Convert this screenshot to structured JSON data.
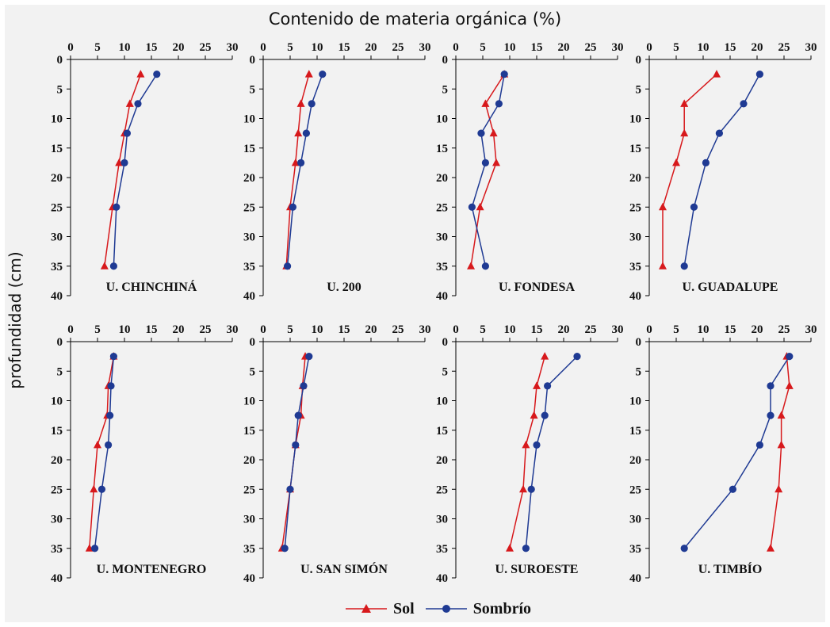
{
  "chart_data": {
    "type": "line",
    "title": "Contenido de materia orgánica (%)",
    "ylabel": "profundidad (cm)",
    "xlim": [
      0,
      30
    ],
    "ylim": [
      0,
      40
    ],
    "x_ticks": [
      0,
      5,
      10,
      15,
      20,
      25,
      30
    ],
    "y_ticks": [
      0,
      5,
      10,
      15,
      20,
      25,
      30,
      35,
      40
    ],
    "y_inverted": true,
    "grid": false,
    "legend_position": "bottom-center",
    "series_names": [
      "Sol",
      "Sombrío"
    ],
    "series_colors": {
      "Sol": "#d7191c",
      "Sombrío": "#1f3a93"
    },
    "panels": [
      {
        "label": "U. CHINCHINÁ",
        "depth": [
          2.5,
          7.5,
          12.5,
          17.5,
          25,
          35
        ],
        "sol": [
          13.0,
          11.0,
          10.0,
          9.0,
          7.8,
          6.3
        ],
        "sombrio": [
          16.0,
          12.5,
          10.5,
          10.0,
          8.5,
          8.0
        ]
      },
      {
        "label": "U. 200",
        "depth": [
          2.5,
          7.5,
          12.5,
          17.5,
          25,
          35
        ],
        "sol": [
          8.5,
          7.0,
          6.5,
          6.0,
          5.0,
          4.3
        ],
        "sombrio": [
          11.0,
          9.0,
          8.0,
          7.0,
          5.5,
          4.5
        ]
      },
      {
        "label": "U. FONDESA",
        "depth": [
          2.5,
          7.5,
          12.5,
          17.5,
          25,
          35
        ],
        "sol": [
          9.0,
          5.5,
          7.0,
          7.5,
          4.5,
          2.8
        ],
        "sombrio": [
          9.0,
          8.0,
          4.7,
          5.5,
          3.0,
          5.5
        ]
      },
      {
        "label": "U. GUADALUPE",
        "depth": [
          2.5,
          7.5,
          12.5,
          17.5,
          25,
          35
        ],
        "sol": [
          12.5,
          6.5,
          6.5,
          5.0,
          2.5,
          2.5
        ],
        "sombrio": [
          20.5,
          17.5,
          13.0,
          10.5,
          8.3,
          6.5
        ]
      },
      {
        "label": "U. MONTENEGRO",
        "depth": [
          2.5,
          7.5,
          12.5,
          17.5,
          25,
          35
        ],
        "sol": [
          8.0,
          7.0,
          6.8,
          5.0,
          4.3,
          3.5
        ],
        "sombrio": [
          8.0,
          7.5,
          7.3,
          7.0,
          5.8,
          4.5
        ]
      },
      {
        "label": "U. SAN SIMÓN",
        "depth": [
          2.5,
          7.5,
          12.5,
          17.5,
          25,
          35
        ],
        "sol": [
          7.8,
          7.3,
          7.0,
          6.0,
          5.0,
          3.5
        ],
        "sombrio": [
          8.5,
          7.5,
          6.5,
          6.0,
          5.0,
          4.0
        ]
      },
      {
        "label": "U. SUROESTE",
        "depth": [
          2.5,
          7.5,
          12.5,
          17.5,
          25,
          35
        ],
        "sol": [
          16.5,
          15.0,
          14.5,
          13.0,
          12.5,
          10.0
        ],
        "sombrio": [
          22.5,
          17.0,
          16.5,
          15.0,
          14.0,
          13.0
        ]
      },
      {
        "label": "U. TIMBÍO",
        "depth": [
          2.5,
          7.5,
          12.5,
          17.5,
          25,
          35
        ],
        "sol": [
          25.5,
          26.0,
          24.5,
          24.5,
          24.0,
          22.5
        ],
        "sombrio": [
          26.0,
          22.5,
          22.5,
          20.5,
          15.5,
          6.5
        ]
      }
    ]
  }
}
